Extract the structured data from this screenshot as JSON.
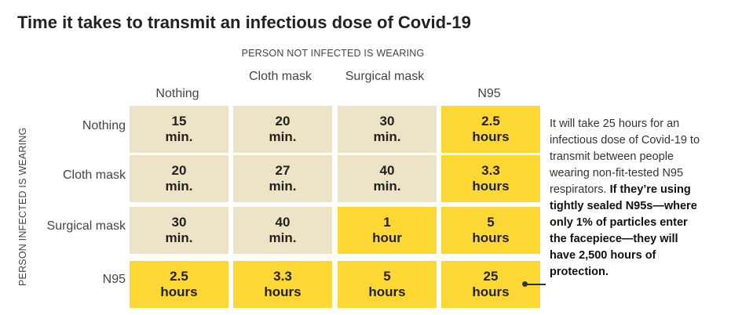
{
  "title": "Time it takes to transmit an infectious dose of Covid-19",
  "chart_data": {
    "type": "table",
    "title": "Time it takes to transmit an infectious dose of Covid-19",
    "column_axis_label": "PERSON NOT INFECTED IS WEARING",
    "row_axis_label": "PERSON INFECTED IS WEARING",
    "columns": [
      "Nothing",
      "Cloth mask",
      "Surgical mask",
      "N95"
    ],
    "rows": [
      {
        "label": "Nothing",
        "cells": [
          {
            "value": "15",
            "unit": "min.",
            "color": "beige"
          },
          {
            "value": "20",
            "unit": "min.",
            "color": "beige"
          },
          {
            "value": "30",
            "unit": "min.",
            "color": "beige"
          },
          {
            "value": "2.5",
            "unit": "hours",
            "color": "yellow"
          }
        ]
      },
      {
        "label": "Cloth mask",
        "cells": [
          {
            "value": "20",
            "unit": "min.",
            "color": "beige"
          },
          {
            "value": "27",
            "unit": "min.",
            "color": "beige"
          },
          {
            "value": "40",
            "unit": "min.",
            "color": "beige"
          },
          {
            "value": "3.3",
            "unit": "hours",
            "color": "yellow"
          }
        ]
      },
      {
        "label": "Surgical mask",
        "cells": [
          {
            "value": "30",
            "unit": "min.",
            "color": "beige"
          },
          {
            "value": "40",
            "unit": "min.",
            "color": "beige"
          },
          {
            "value": "1",
            "unit": "hour",
            "color": "yellow"
          },
          {
            "value": "5",
            "unit": "hours",
            "color": "yellow"
          }
        ]
      },
      {
        "label": "N95",
        "cells": [
          {
            "value": "2.5",
            "unit": "hours",
            "color": "yellow"
          },
          {
            "value": "3.3",
            "unit": "hours",
            "color": "yellow"
          },
          {
            "value": "5",
            "unit": "hours",
            "color": "yellow"
          },
          {
            "value": "25",
            "unit": "hours",
            "color": "yellow"
          }
        ]
      }
    ],
    "colors": {
      "beige": "#ede4c7",
      "yellow": "#fdd835"
    }
  },
  "annotation": {
    "plain": "It will take 25 hours for an infectious dose of Covid-19 to transmit between people wearing non-fit-tested N95 respirators.",
    "bold": "If they’re using tightly sealed N95s—where only 1% of particles enter the facepiece—they will have 2,500 hours of protection."
  }
}
